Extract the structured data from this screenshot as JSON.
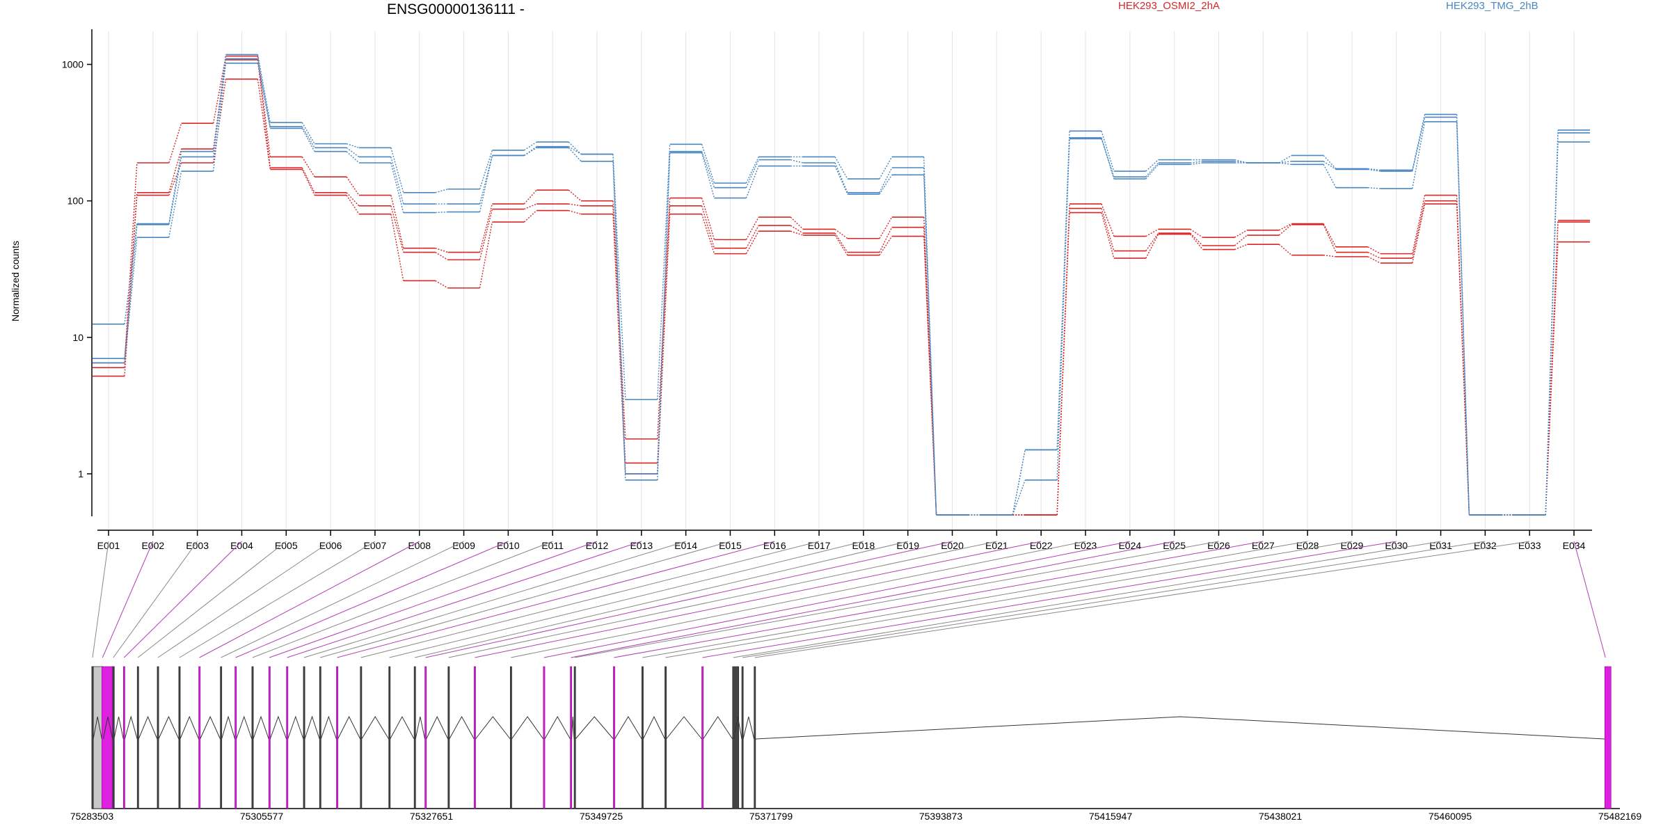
{
  "chart_data": {
    "type": "line",
    "title": "ENSG00000136111 -",
    "ylabel": "Normalized counts",
    "yscale": "log",
    "ylim": [
      0.5,
      1500
    ],
    "yticks": [
      1,
      10,
      100,
      1000
    ],
    "categories": [
      "E001",
      "E002",
      "E003",
      "E004",
      "E005",
      "E006",
      "E007",
      "E008",
      "E009",
      "E010",
      "E011",
      "E012",
      "E013",
      "E014",
      "E015",
      "E016",
      "E017",
      "E018",
      "E019",
      "E020",
      "E021",
      "E022",
      "E023",
      "E024",
      "E025",
      "E026",
      "E027",
      "E028",
      "E029",
      "E030",
      "E031",
      "E032",
      "E033",
      "E034"
    ],
    "series": [
      {
        "name": "HEK293_OSMI2_2hA",
        "color": "#d62728",
        "values": [
          6.5,
          190,
          370,
          1150,
          210,
          150,
          110,
          45,
          42,
          95,
          120,
          100,
          1.8,
          105,
          52,
          76,
          62,
          53,
          76,
          0.5,
          0.5,
          0.5,
          95,
          55,
          62,
          54,
          61,
          68,
          46,
          41,
          110,
          0.5,
          0.5,
          72
        ]
      },
      {
        "name": "HEK293_OSMI2_2hA",
        "color": "#d62728",
        "values": [
          6.0,
          115,
          240,
          1080,
          175,
          115,
          92,
          42,
          37,
          87,
          95,
          92,
          1.2,
          92,
          45,
          66,
          58,
          42,
          64,
          0.5,
          0.5,
          0.5,
          88,
          43,
          58,
          47,
          56,
          67,
          42,
          38,
          100,
          0.5,
          0.5,
          70
        ]
      },
      {
        "name": "HEK293_OSMI2_2hA",
        "color": "#d62728",
        "values": [
          5.2,
          110,
          190,
          780,
          170,
          110,
          80,
          26,
          23,
          70,
          85,
          80,
          1.0,
          80,
          41,
          60,
          56,
          40,
          55,
          0.5,
          0.5,
          0.5,
          82,
          38,
          57,
          44,
          48,
          40,
          39,
          35,
          95,
          0.5,
          0.5,
          50
        ]
      },
      {
        "name": "HEK293_TMG_2hB",
        "color": "#4a86c0",
        "values": [
          12.5,
          68,
          230,
          1180,
          375,
          262,
          245,
          115,
          122,
          235,
          270,
          220,
          3.5,
          260,
          135,
          210,
          210,
          145,
          210,
          0.5,
          0.5,
          1.5,
          325,
          165,
          200,
          200,
          190,
          215,
          172,
          168,
          430,
          0.5,
          0.5,
          330
        ]
      },
      {
        "name": "HEK293_TMG_2hB",
        "color": "#4a86c0",
        "values": [
          7.0,
          67,
          210,
          1100,
          350,
          245,
          210,
          95,
          95,
          215,
          245,
          195,
          1.0,
          230,
          125,
          200,
          190,
          115,
          175,
          0.5,
          0.5,
          0.9,
          285,
          150,
          190,
          195,
          190,
          195,
          170,
          165,
          410,
          0.5,
          0.5,
          315
        ]
      },
      {
        "name": "HEK293_TMG_2hB",
        "color": "#4a86c0",
        "values": [
          6.5,
          54,
          165,
          1020,
          340,
          230,
          190,
          82,
          83,
          215,
          250,
          220,
          0.9,
          225,
          105,
          180,
          180,
          112,
          155,
          0.5,
          0.5,
          1.5,
          290,
          145,
          185,
          190,
          190,
          185,
          125,
          123,
          380,
          0.5,
          0.5,
          270
        ]
      }
    ],
    "legend": [
      "HEK293_OSMI2_2hA",
      "HEK293_TMG_2hB"
    ],
    "legend_placement": "top",
    "gene_model": {
      "coordinate_ticks": [
        "75283503",
        "75305577",
        "75327651",
        "75349725",
        "75371799",
        "75393873",
        "75415947",
        "75438021",
        "75460095",
        "75482169"
      ],
      "range": [
        75283503,
        75482169
      ],
      "exon_color": "#e020e0",
      "exon_starts": [
        75283503,
        75284800,
        75286200,
        75287600,
        75289400,
        75292000,
        75294800,
        75297400,
        75300200,
        75302100,
        75304300,
        75306500,
        75308800,
        75311000,
        75313100,
        75315300,
        75318400,
        75322100,
        75325400,
        75326800,
        75329800,
        75333200,
        75337900,
        75342200,
        75345700,
        75346200,
        75351300,
        75355000,
        75358000,
        75362800,
        75366800,
        75368000,
        75369600,
        75480200
      ],
      "highlighted_exons": [
        2,
        4,
        8,
        10,
        12,
        13,
        16,
        20,
        22,
        24,
        25,
        27,
        30,
        34
      ]
    }
  }
}
